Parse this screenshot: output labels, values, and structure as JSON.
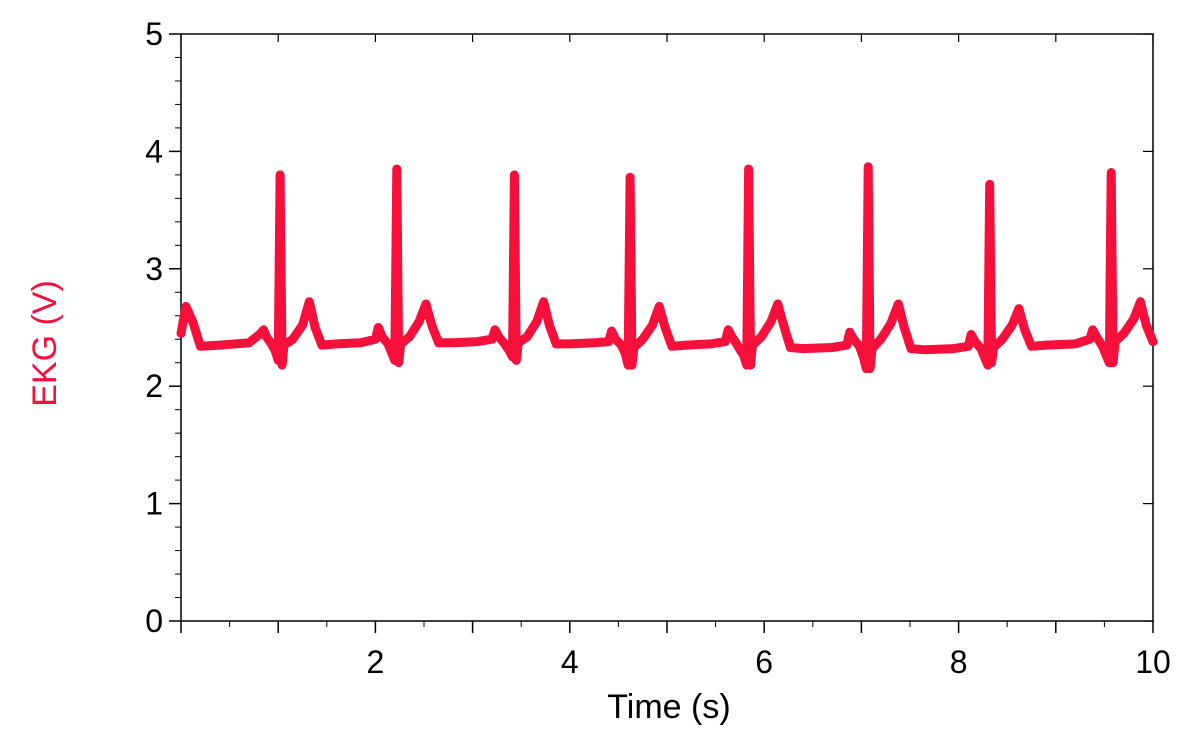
{
  "chart_data": {
    "type": "line",
    "title": "",
    "xlabel": "Time (s)",
    "ylabel": "EKG (V)",
    "xlim": [
      0,
      10
    ],
    "ylim": [
      0,
      5
    ],
    "x_ticks": [
      "2",
      "4",
      "6",
      "8",
      "10"
    ],
    "y_ticks": [
      "0",
      "1",
      "2",
      "3",
      "4",
      "5"
    ],
    "grid": false,
    "legend": "none",
    "colors": {
      "series": "#f5103c",
      "ylabel": "#f5103c",
      "axis": "#000000",
      "tick_label": "#000000",
      "xlabel": "#000000"
    },
    "series": [
      {
        "x": [
          0.0,
          0.05,
          0.12,
          0.2,
          0.4,
          0.7,
          0.82,
          0.85,
          0.88,
          0.93,
          0.97,
          1.0,
          1.02,
          1.04,
          1.06,
          1.15,
          1.25,
          1.32,
          1.38,
          1.45,
          1.6,
          1.85,
          2.0,
          2.03,
          2.07,
          2.13,
          2.17,
          2.2,
          2.22,
          2.24,
          2.26,
          2.35,
          2.45,
          2.52,
          2.58,
          2.65,
          2.8,
          3.05,
          3.2,
          3.23,
          3.27,
          3.33,
          3.38,
          3.41,
          3.43,
          3.45,
          3.47,
          3.56,
          3.66,
          3.73,
          3.79,
          3.86,
          4.0,
          4.25,
          4.4,
          4.43,
          4.47,
          4.53,
          4.57,
          4.6,
          4.62,
          4.64,
          4.66,
          4.75,
          4.85,
          4.92,
          4.98,
          5.05,
          5.2,
          5.45,
          5.6,
          5.63,
          5.67,
          5.73,
          5.79,
          5.82,
          5.84,
          5.86,
          5.88,
          5.97,
          6.07,
          6.14,
          6.2,
          6.27,
          6.4,
          6.7,
          6.85,
          6.88,
          6.92,
          6.98,
          7.02,
          7.05,
          7.07,
          7.09,
          7.11,
          7.2,
          7.3,
          7.38,
          7.44,
          7.51,
          7.65,
          7.95,
          8.1,
          8.13,
          8.17,
          8.23,
          8.27,
          8.3,
          8.32,
          8.34,
          8.36,
          8.45,
          8.55,
          8.62,
          8.68,
          8.75,
          8.9,
          9.2,
          9.35,
          9.38,
          9.42,
          9.48,
          9.52,
          9.55,
          9.57,
          9.59,
          9.61,
          9.7,
          9.8,
          9.87,
          9.93,
          10.0
        ],
        "y": [
          2.45,
          2.68,
          2.55,
          2.34,
          2.35,
          2.37,
          2.45,
          2.48,
          2.42,
          2.36,
          2.3,
          2.22,
          3.8,
          2.18,
          2.35,
          2.4,
          2.52,
          2.72,
          2.5,
          2.35,
          2.36,
          2.37,
          2.4,
          2.5,
          2.42,
          2.36,
          2.28,
          2.22,
          3.85,
          2.2,
          2.36,
          2.42,
          2.55,
          2.7,
          2.52,
          2.37,
          2.37,
          2.38,
          2.4,
          2.48,
          2.42,
          2.36,
          2.3,
          2.25,
          3.8,
          2.22,
          2.37,
          2.42,
          2.55,
          2.72,
          2.52,
          2.36,
          2.36,
          2.37,
          2.38,
          2.47,
          2.4,
          2.35,
          2.28,
          2.18,
          3.78,
          2.18,
          2.33,
          2.4,
          2.52,
          2.68,
          2.5,
          2.34,
          2.35,
          2.36,
          2.38,
          2.48,
          2.42,
          2.34,
          2.26,
          2.18,
          3.85,
          2.18,
          2.35,
          2.42,
          2.55,
          2.7,
          2.52,
          2.33,
          2.32,
          2.33,
          2.35,
          2.46,
          2.4,
          2.34,
          2.25,
          2.15,
          3.87,
          2.15,
          2.32,
          2.4,
          2.53,
          2.7,
          2.5,
          2.32,
          2.31,
          2.32,
          2.34,
          2.44,
          2.38,
          2.32,
          2.24,
          2.18,
          3.72,
          2.2,
          2.33,
          2.4,
          2.52,
          2.66,
          2.48,
          2.34,
          2.35,
          2.36,
          2.4,
          2.48,
          2.42,
          2.34,
          2.26,
          2.2,
          3.82,
          2.2,
          2.38,
          2.45,
          2.57,
          2.72,
          2.52,
          2.38
        ]
      }
    ]
  }
}
